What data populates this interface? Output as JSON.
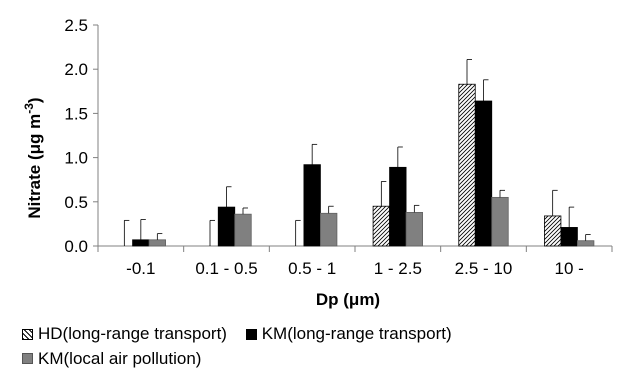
{
  "chart_data": {
    "type": "bar",
    "categories": [
      "-0.1",
      "0.1 - 0.5",
      "0.5 - 1",
      "1 - 2.5",
      "2.5 - 10",
      "10 -"
    ],
    "series": [
      {
        "name": "HD(long-range transport)",
        "pattern": "hatch",
        "values": [
          0.0,
          0.0,
          0.0,
          0.45,
          1.83,
          0.34
        ],
        "errors": [
          0.29,
          0.29,
          0.29,
          0.28,
          0.28,
          0.29
        ]
      },
      {
        "name": "KM(long-range transport)",
        "color": "#000000",
        "values": [
          0.07,
          0.44,
          0.92,
          0.89,
          1.64,
          0.21
        ],
        "errors": [
          0.23,
          0.23,
          0.23,
          0.23,
          0.24,
          0.23
        ]
      },
      {
        "name": "KM(local air pollution)",
        "color": "#808080",
        "values": [
          0.07,
          0.36,
          0.37,
          0.38,
          0.55,
          0.06
        ],
        "errors": [
          0.07,
          0.07,
          0.08,
          0.08,
          0.08,
          0.07
        ]
      }
    ],
    "yticks": [
      "0.0",
      "0.5",
      "1.0",
      "1.5",
      "2.0",
      "2.5"
    ],
    "ylim": [
      0,
      2.5
    ],
    "ylabel_main": "Nitrate (μg m",
    "ylabel_sup": "-3",
    "ylabel_end": ")",
    "xlabel": "Dp (μm)",
    "grid": false,
    "legend_position": "bottom"
  }
}
